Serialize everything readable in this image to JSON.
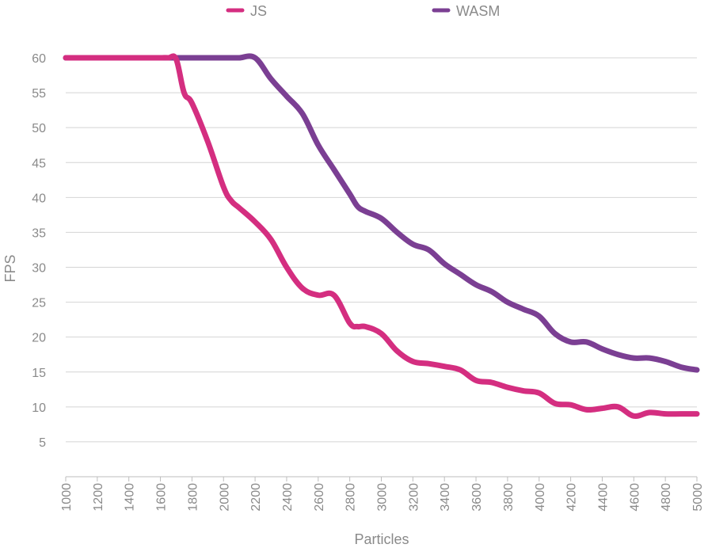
{
  "chart_data": {
    "type": "line",
    "xlabel": "Particles",
    "ylabel": "FPS",
    "xlim": [
      1000,
      5000
    ],
    "ylim": [
      0,
      60
    ],
    "x_ticks": [
      1000,
      1200,
      1400,
      1600,
      1800,
      2000,
      2200,
      2400,
      2600,
      2800,
      3000,
      3200,
      3400,
      3600,
      3800,
      4000,
      4200,
      4400,
      4600,
      4800,
      5000
    ],
    "y_ticks": [
      5,
      10,
      15,
      20,
      25,
      30,
      35,
      40,
      45,
      50,
      55,
      60
    ],
    "grid": true,
    "legend_position": "top",
    "x": [
      1000,
      1100,
      1200,
      1300,
      1400,
      1500,
      1600,
      1650,
      1700,
      1750,
      1800,
      1900,
      2000,
      2050,
      2100,
      2200,
      2300,
      2400,
      2500,
      2600,
      2700,
      2800,
      2850,
      2900,
      3000,
      3100,
      3200,
      3300,
      3400,
      3500,
      3600,
      3700,
      3800,
      3900,
      4000,
      4100,
      4200,
      4300,
      4400,
      4500,
      4600,
      4700,
      4800,
      4900,
      5000
    ],
    "series": [
      {
        "name": "JS",
        "color": "#d42e80",
        "values": [
          60,
          60,
          60,
          60,
          60,
          60,
          60,
          60,
          59.8,
          55,
          53.5,
          48,
          41.5,
          39.5,
          38.5,
          36.5,
          34,
          30,
          27,
          26,
          26,
          22,
          21.5,
          21.5,
          20.5,
          18,
          16.5,
          16.2,
          15.8,
          15.3,
          13.8,
          13.5,
          12.8,
          12.3,
          12,
          10.5,
          10.3,
          9.6,
          9.8,
          10,
          8.7,
          9.2,
          9,
          9,
          9
        ]
      },
      {
        "name": "WASM",
        "color": "#7b3f93",
        "values": [
          60,
          60,
          60,
          60,
          60,
          60,
          60,
          60,
          60,
          60,
          60,
          60,
          60,
          60,
          60,
          60,
          57,
          54.5,
          52,
          47.5,
          44,
          40.5,
          38.7,
          38,
          37,
          35,
          33.3,
          32.5,
          30.5,
          29,
          27.5,
          26.5,
          25,
          24,
          23,
          20.5,
          19.3,
          19.3,
          18.3,
          17.5,
          17,
          17,
          16.5,
          15.7,
          15.3
        ]
      }
    ]
  }
}
